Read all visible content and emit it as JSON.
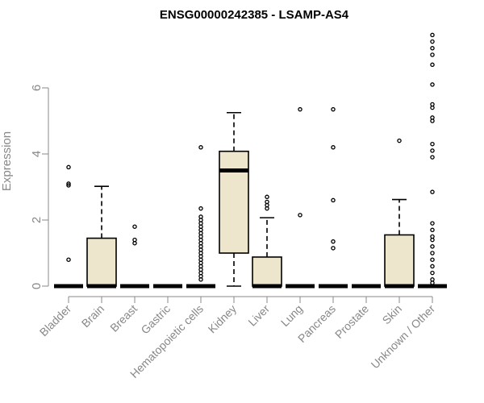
{
  "chart_data": {
    "type": "boxplot",
    "title": "ENSG00000242385 - LSAMP-AS4",
    "xlabel": "",
    "ylabel": "Expression",
    "ylim": [
      0,
      7.7
    ],
    "yticks": [
      0,
      2,
      4,
      6
    ],
    "box_color": "#ede6cd",
    "axis_color": "#888888",
    "categories": [
      "Bladder",
      "Brain",
      "Breast",
      "Gastric",
      "Hematopoietic cells",
      "Kidney",
      "Liver",
      "Lung",
      "Pancreas",
      "Prostate",
      "Skin",
      "Unknown / Other"
    ],
    "boxes": [
      {
        "q1": 0,
        "median": 0,
        "q3": 0,
        "whisker_low": 0,
        "whisker_high": 0,
        "outliers": [
          0.8,
          3.05,
          3.1,
          3.6
        ]
      },
      {
        "q1": 0,
        "median": 0,
        "q3": 1.45,
        "whisker_low": 0,
        "whisker_high": 3.02,
        "outliers": []
      },
      {
        "q1": 0,
        "median": 0,
        "q3": 0,
        "whisker_low": 0,
        "whisker_high": 0,
        "outliers": [
          1.3,
          1.4,
          1.8
        ]
      },
      {
        "q1": 0,
        "median": 0,
        "q3": 0,
        "whisker_low": 0,
        "whisker_high": 0,
        "outliers": []
      },
      {
        "q1": 0,
        "median": 0,
        "q3": 0,
        "whisker_low": 0,
        "whisker_high": 0,
        "outliers": [
          0.2,
          0.3,
          0.4,
          0.5,
          0.6,
          0.7,
          0.8,
          0.9,
          1.0,
          1.1,
          1.2,
          1.3,
          1.4,
          1.5,
          1.6,
          1.7,
          1.8,
          1.9,
          2.0,
          2.1,
          2.35,
          4.2
        ]
      },
      {
        "q1": 1.0,
        "median": 3.5,
        "q3": 4.08,
        "whisker_low": 0,
        "whisker_high": 5.25,
        "outliers": []
      },
      {
        "q1": 0,
        "median": 0,
        "q3": 0.88,
        "whisker_low": 0,
        "whisker_high": 2.07,
        "outliers": [
          2.35,
          2.45,
          2.55,
          2.7
        ]
      },
      {
        "q1": 0,
        "median": 0,
        "q3": 0,
        "whisker_low": 0,
        "whisker_high": 0,
        "outliers": [
          2.15,
          5.35
        ]
      },
      {
        "q1": 0,
        "median": 0,
        "q3": 0,
        "whisker_low": 0,
        "whisker_high": 0,
        "outliers": [
          1.15,
          1.35,
          2.6,
          4.2,
          5.35
        ]
      },
      {
        "q1": 0,
        "median": 0,
        "q3": 0,
        "whisker_low": 0,
        "whisker_high": 0,
        "outliers": []
      },
      {
        "q1": 0,
        "median": 0,
        "q3": 1.55,
        "whisker_low": 0,
        "whisker_high": 2.62,
        "outliers": [
          4.4
        ]
      },
      {
        "q1": 0,
        "median": 0,
        "q3": 0,
        "whisker_low": 0,
        "whisker_high": 0,
        "outliers": [
          0.1,
          0.2,
          0.4,
          0.6,
          0.8,
          1.0,
          1.2,
          1.4,
          1.5,
          1.7,
          1.9,
          2.85,
          3.9,
          4.1,
          4.3,
          5.0,
          5.1,
          5.4,
          5.5,
          6.1,
          6.7,
          7.0,
          7.2,
          7.4,
          7.6
        ]
      }
    ]
  }
}
